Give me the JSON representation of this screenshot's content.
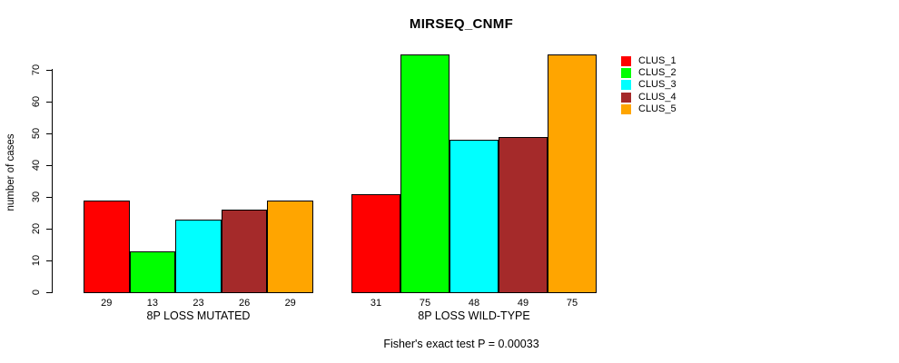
{
  "title": "MIRSEQ_CNMF",
  "footer": "Fisher's exact test P = 0.00033",
  "chart_data": {
    "type": "bar",
    "title": "MIRSEQ_CNMF",
    "xlabel": "",
    "ylabel": "number of cases",
    "ylim": [
      0,
      75
    ],
    "yticks": [
      0,
      10,
      20,
      30,
      40,
      50,
      60,
      70
    ],
    "grid": false,
    "legend_position": "right",
    "categories": [
      "8P LOSS MUTATED",
      "8P LOSS WILD-TYPE"
    ],
    "series": [
      {
        "name": "CLUS_1",
        "color": "#FF0000",
        "values": [
          29,
          31
        ]
      },
      {
        "name": "CLUS_2",
        "color": "#00FF00",
        "values": [
          13,
          75
        ]
      },
      {
        "name": "CLUS_3",
        "color": "#00FFFF",
        "values": [
          23,
          48
        ]
      },
      {
        "name": "CLUS_4",
        "color": "#A52A2A",
        "values": [
          26,
          49
        ]
      },
      {
        "name": "CLUS_5",
        "color": "#FFA500",
        "values": [
          29,
          75
        ]
      }
    ],
    "bar_value_labels": {
      "8P LOSS MUTATED": [
        29,
        13,
        23,
        26,
        29
      ],
      "8P LOSS WILD-TYPE": [
        31,
        75,
        48,
        49,
        75
      ]
    },
    "annotation": "Fisher's exact test P = 0.00033"
  }
}
